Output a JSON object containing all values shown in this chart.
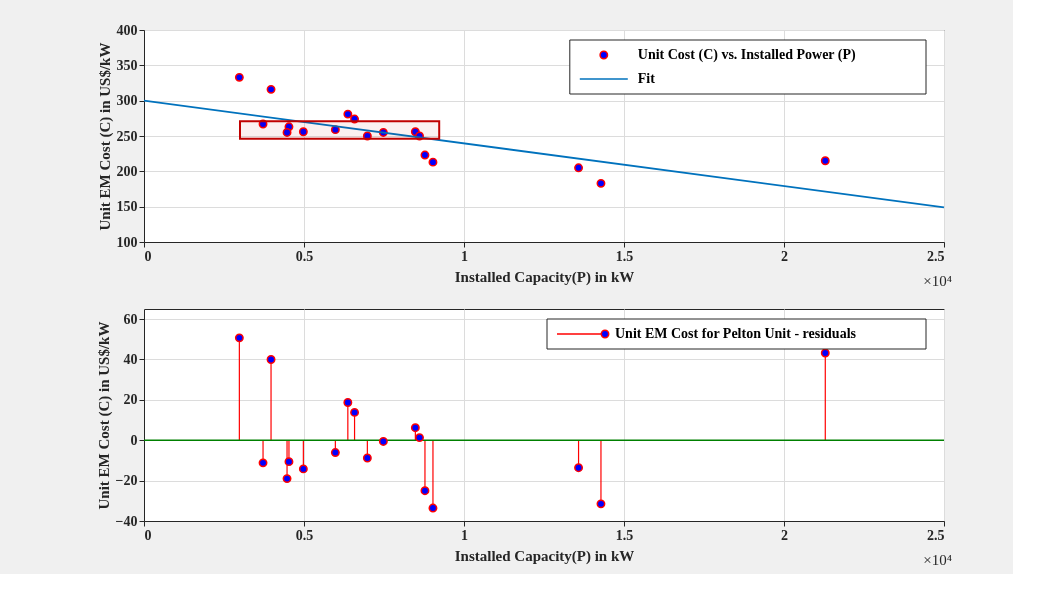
{
  "chart_data": [
    {
      "type": "scatter",
      "xlabel": "Installed Capacity(P) in kW",
      "ylabel": "Unit EM Cost (C) in US$/kW",
      "xlim": [
        0,
        2.5
      ],
      "xticks": [
        0,
        0.5,
        1,
        1.5,
        2,
        2.5
      ],
      "ylim": [
        100,
        400
      ],
      "yticks": [
        100,
        150,
        200,
        250,
        300,
        350,
        400
      ],
      "grid": true,
      "legend": "top right",
      "marker": "circle",
      "annotations": [
        "×10⁴"
      ],
      "bands": [
        {
          "axis": "y",
          "from": 246,
          "to": 271,
          "color": "#c00000"
        }
      ],
      "series": [
        {
          "name": "Unit Cost (C) vs. Installed Power (P)",
          "color": "#0000ff",
          "x": [
            0.298,
            0.397,
            0.372,
            0.453,
            0.447,
            0.498,
            0.598,
            0.637,
            0.658,
            0.698,
            0.748,
            0.848,
            0.861,
            0.878,
            0.903,
            1.358,
            1.428,
            2.129
          ],
          "values": [
            333,
            316,
            267,
            263,
            255,
            256,
            259,
            281,
            274,
            250,
            255,
            256,
            250,
            223,
            213,
            205,
            183,
            215
          ]
        },
        {
          "name": "Fit",
          "type": "line",
          "marker": "none",
          "color": "#0072bd",
          "x": [
            0,
            2.5
          ],
          "values": [
            300,
            149
          ]
        }
      ]
    },
    {
      "type": "lollipop",
      "xlabel": "Installed Capacity(P) in kW",
      "ylabel": "Unit EM Cost (C) in US$/kW",
      "xlim": [
        0,
        2.5
      ],
      "xticks": [
        0,
        0.5,
        1,
        1.5,
        2,
        2.5
      ],
      "ylim": [
        -40,
        65
      ],
      "yticks": [
        -40,
        -20,
        0,
        20,
        40,
        60
      ],
      "grid": true,
      "legend": "top right",
      "marker": "circle",
      "annotations": [
        "×10⁴"
      ],
      "ref_lines": [
        {
          "axis": "y",
          "value": 0,
          "color": "#008000"
        }
      ],
      "series": [
        {
          "name": "Unit EM Cost for Pelton Unit - residuals",
          "color": "#ff0000",
          "x": [
            0.298,
            0.397,
            0.372,
            0.453,
            0.447,
            0.498,
            0.598,
            0.637,
            0.658,
            0.698,
            0.748,
            0.848,
            0.861,
            0.878,
            0.903,
            1.358,
            1.428,
            2.129
          ],
          "values": [
            50.7,
            40,
            -11.2,
            -10.6,
            -19,
            -14.2,
            -6.1,
            18.7,
            13.8,
            -8.8,
            -0.6,
            6.2,
            1.3,
            -25,
            -33.6,
            -13.6,
            -31.5,
            43.2
          ]
        }
      ]
    }
  ]
}
